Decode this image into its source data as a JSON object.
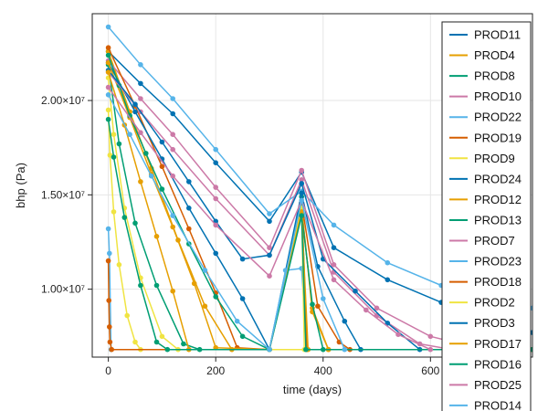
{
  "chart_data": {
    "type": "line",
    "title": "",
    "xlabel": "time (days)",
    "ylabel": "bhp (Pa)",
    "xlim": [
      -30,
      790
    ],
    "ylim": [
      6400000,
      24600000
    ],
    "xticks": [
      {
        "value": 0,
        "label": "0"
      },
      {
        "value": 200,
        "label": "200"
      },
      {
        "value": 400,
        "label": "400"
      },
      {
        "value": 600,
        "label": "600"
      }
    ],
    "yticks": [
      {
        "value": 10000000,
        "label": "1.00×10⁷"
      },
      {
        "value": 15000000,
        "label": "1.50×10⁷"
      },
      {
        "value": 20000000,
        "label": "2.00×10⁷"
      }
    ],
    "grid": true,
    "legend_position": "right",
    "series": [
      {
        "name": "PROD11",
        "color": "#0072B2",
        "x": [
          0,
          60,
          120,
          200,
          300,
          360,
          420,
          520,
          620,
          720,
          790
        ],
        "y": [
          22600000,
          20900000,
          19300000,
          16700000,
          13600000,
          16200000,
          12200000,
          10500000,
          9300000,
          8300000,
          7700000
        ]
      },
      {
        "name": "PROD4",
        "color": "#E69F00",
        "x": [
          0,
          40,
          80,
          130,
          180,
          230,
          300,
          360,
          380,
          410
        ],
        "y": [
          22600000,
          19400000,
          16400000,
          12600000,
          9100000,
          6800000,
          6800000,
          14400000,
          8800000,
          6800000
        ]
      },
      {
        "name": "PROD8",
        "color": "#009E73",
        "x": [
          0,
          20,
          50,
          90,
          140,
          170,
          300,
          360,
          370,
          790
        ],
        "y": [
          21900000,
          17700000,
          13500000,
          10200000,
          7100000,
          6800000,
          6800000,
          14900000,
          6800000,
          6800000
        ]
      },
      {
        "name": "PROD10",
        "color": "#CC79A7",
        "x": [
          0,
          60,
          120,
          200,
          300,
          360,
          420,
          500,
          600,
          700,
          790
        ],
        "y": [
          22100000,
          20100000,
          18200000,
          15400000,
          12200000,
          16300000,
          11300000,
          9000000,
          7500000,
          6800000,
          6800000
        ]
      },
      {
        "name": "PROD22",
        "color": "#56B4E9",
        "x": [
          0,
          60,
          120,
          200,
          300,
          360,
          420,
          520,
          620,
          720,
          790
        ],
        "y": [
          23900000,
          21900000,
          20100000,
          17400000,
          14000000,
          15200000,
          13400000,
          11400000,
          10200000,
          9400000,
          9000000
        ]
      },
      {
        "name": "PROD19",
        "color": "#D55E00",
        "x": [
          0,
          50,
          100,
          150,
          200,
          240,
          300,
          360,
          390,
          430,
          450
        ],
        "y": [
          22800000,
          19700000,
          16500000,
          13200000,
          9800000,
          6900000,
          6800000,
          14600000,
          9100000,
          7200000,
          6800000
        ]
      },
      {
        "name": "PROD9",
        "color": "#F0E442",
        "x": [
          0,
          3,
          10,
          20,
          35,
          50,
          60,
          790
        ],
        "y": [
          19500000,
          17100000,
          14100000,
          11300000,
          8600000,
          7200000,
          6800000,
          6800000
        ]
      },
      {
        "name": "PROD24",
        "color": "#0072B2",
        "x": [
          0,
          50,
          100,
          150,
          200,
          250,
          300,
          360,
          390,
          440,
          470
        ],
        "y": [
          22000000,
          19400000,
          16900000,
          14300000,
          11900000,
          9500000,
          6800000,
          15100000,
          11200000,
          8300000,
          6800000
        ]
      },
      {
        "name": "PROD12",
        "color": "#E69F00",
        "x": [
          0,
          40,
          80,
          120,
          160,
          200,
          300,
          360,
          380,
          410
        ],
        "y": [
          22000000,
          19100000,
          16100000,
          13300000,
          10300000,
          6900000,
          6800000,
          14200000,
          9000000,
          6800000
        ]
      },
      {
        "name": "PROD13",
        "color": "#009E73",
        "x": [
          0,
          20,
          40,
          70,
          100,
          150,
          200,
          250,
          300,
          360,
          380,
          400
        ],
        "y": [
          22400000,
          20800000,
          19200000,
          17200000,
          15300000,
          12400000,
          9600000,
          7500000,
          6800000,
          14000000,
          9200000,
          6800000
        ]
      },
      {
        "name": "PROD7",
        "color": "#CC79A7",
        "x": [
          0,
          60,
          120,
          200,
          300,
          360,
          420,
          500,
          580,
          640,
          790
        ],
        "y": [
          21500000,
          19400000,
          17400000,
          14800000,
          11800000,
          15800000,
          10900000,
          8600000,
          7100000,
          6800000,
          6800000
        ]
      },
      {
        "name": "PROD23",
        "color": "#56B4E9",
        "x": [
          0,
          2,
          5,
          300,
          330,
          360,
          370,
          790
        ],
        "y": [
          13200000,
          11900000,
          6800000,
          6800000,
          11000000,
          11100000,
          6800000,
          6800000
        ]
      },
      {
        "name": "PROD18",
        "color": "#D55E00",
        "x": [
          0,
          1,
          2,
          3,
          6,
          300,
          360,
          370,
          790
        ],
        "y": [
          11500000,
          9400000,
          8000000,
          7200000,
          6800000,
          6800000,
          14300000,
          6800000,
          6800000
        ]
      },
      {
        "name": "PROD2",
        "color": "#F0E442",
        "x": [
          0,
          10,
          30,
          60,
          100,
          130,
          300,
          360,
          365,
          790
        ],
        "y": [
          21200000,
          18200000,
          14300000,
          10600000,
          7500000,
          6800000,
          6800000,
          14300000,
          6800000,
          6800000
        ]
      },
      {
        "name": "PROD3",
        "color": "#0072B2",
        "x": [
          0,
          50,
          100,
          150,
          200,
          250,
          300,
          360,
          400,
          460,
          520,
          580
        ],
        "y": [
          21600000,
          19800000,
          17800000,
          15700000,
          13600000,
          11600000,
          11800000,
          15600000,
          11600000,
          9900000,
          8200000,
          6800000
        ]
      },
      {
        "name": "PROD17",
        "color": "#E69F00",
        "x": [
          0,
          30,
          60,
          90,
          120,
          150,
          300,
          360,
          372,
          790
        ],
        "y": [
          21500000,
          18700000,
          15700000,
          12800000,
          9900000,
          6800000,
          6800000,
          14100000,
          6800000,
          6800000
        ]
      },
      {
        "name": "PROD16",
        "color": "#009E73",
        "x": [
          0,
          10,
          30,
          60,
          90,
          110,
          300,
          360,
          368,
          790
        ],
        "y": [
          19000000,
          17000000,
          13800000,
          10200000,
          7200000,
          6800000,
          6800000,
          13900000,
          6800000,
          6800000
        ]
      },
      {
        "name": "PROD25",
        "color": "#CC79A7",
        "x": [
          0,
          60,
          120,
          200,
          300,
          360,
          420,
          480,
          540,
          600
        ],
        "y": [
          20700000,
          18300000,
          16000000,
          13400000,
          10700000,
          14700000,
          10500000,
          8900000,
          7600000,
          6800000
        ]
      },
      {
        "name": "PROD14",
        "color": "#56B4E9",
        "x": [
          0,
          40,
          80,
          120,
          180,
          240,
          300,
          360,
          400,
          440
        ],
        "y": [
          20300000,
          18200000,
          16000000,
          13900000,
          11000000,
          8300000,
          6800000,
          14700000,
          9500000,
          6800000
        ]
      }
    ]
  }
}
